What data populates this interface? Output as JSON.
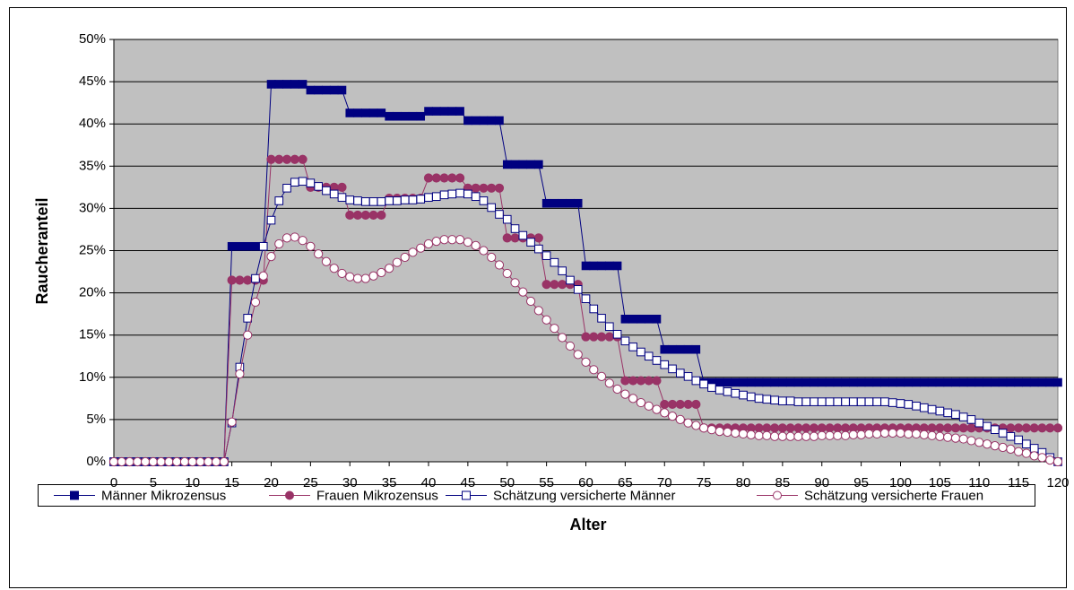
{
  "chart_data": {
    "type": "line",
    "x_label": "Alter",
    "y_label": "Raucheranteil",
    "x": [
      0,
      1,
      2,
      3,
      4,
      5,
      6,
      7,
      8,
      9,
      10,
      11,
      12,
      13,
      14,
      15,
      16,
      17,
      18,
      19,
      20,
      21,
      22,
      23,
      24,
      25,
      26,
      27,
      28,
      29,
      30,
      31,
      32,
      33,
      34,
      35,
      36,
      37,
      38,
      39,
      40,
      41,
      42,
      43,
      44,
      45,
      46,
      47,
      48,
      49,
      50,
      51,
      52,
      53,
      54,
      55,
      56,
      57,
      58,
      59,
      60,
      61,
      62,
      63,
      64,
      65,
      66,
      67,
      68,
      69,
      70,
      71,
      72,
      73,
      74,
      75,
      76,
      77,
      78,
      79,
      80,
      81,
      82,
      83,
      84,
      85,
      86,
      87,
      88,
      89,
      90,
      91,
      92,
      93,
      94,
      95,
      96,
      97,
      98,
      99,
      100,
      101,
      102,
      103,
      104,
      105,
      106,
      107,
      108,
      109,
      110,
      111,
      112,
      113,
      114,
      115,
      116,
      117,
      118,
      119,
      120
    ],
    "xlim": [
      0,
      120
    ],
    "xticks": [
      0,
      5,
      10,
      15,
      20,
      25,
      30,
      35,
      40,
      45,
      50,
      55,
      60,
      65,
      70,
      75,
      80,
      85,
      90,
      95,
      100,
      105,
      110,
      115,
      120
    ],
    "ylim": [
      0,
      50
    ],
    "yticks": [
      {
        "value": 0,
        "label": "0%"
      },
      {
        "value": 5,
        "label": "5%"
      },
      {
        "value": 10,
        "label": "10%"
      },
      {
        "value": 15,
        "label": "15%"
      },
      {
        "value": 20,
        "label": "20%"
      },
      {
        "value": 25,
        "label": "25%"
      },
      {
        "value": 30,
        "label": "30%"
      },
      {
        "value": 35,
        "label": "35%"
      },
      {
        "value": 40,
        "label": "40%"
      },
      {
        "value": 45,
        "label": "45%"
      },
      {
        "value": 50,
        "label": "50%"
      }
    ],
    "grid": true,
    "legend": "bottom",
    "series": [
      {
        "name": "Männer Mikrozensus",
        "color": "#000080",
        "marker": "square",
        "filled": true,
        "values": [
          0,
          0,
          0,
          0,
          0,
          0,
          0,
          0,
          0,
          0,
          0,
          0,
          0,
          0,
          0,
          25.5,
          25.5,
          25.5,
          25.5,
          25.5,
          44.7,
          44.7,
          44.7,
          44.7,
          44.7,
          44,
          44,
          44,
          44,
          44,
          41.3,
          41.3,
          41.3,
          41.3,
          41.3,
          40.9,
          40.9,
          40.9,
          40.9,
          40.9,
          41.5,
          41.5,
          41.5,
          41.5,
          41.5,
          40.4,
          40.4,
          40.4,
          40.4,
          40.4,
          35.2,
          35.2,
          35.2,
          35.2,
          35.2,
          30.6,
          30.6,
          30.6,
          30.6,
          30.6,
          23.2,
          23.2,
          23.2,
          23.2,
          23.2,
          16.9,
          16.9,
          16.9,
          16.9,
          16.9,
          13.3,
          13.3,
          13.3,
          13.3,
          13.3,
          9.4,
          9.4,
          9.4,
          9.4,
          9.4,
          9.4,
          9.4,
          9.4,
          9.4,
          9.4,
          9.4,
          9.4,
          9.4,
          9.4,
          9.4,
          9.4,
          9.4,
          9.4,
          9.4,
          9.4,
          9.4,
          9.4,
          9.4,
          9.4,
          9.4,
          9.4,
          9.4,
          9.4,
          9.4,
          9.4,
          9.4,
          9.4,
          9.4,
          9.4,
          9.4,
          9.4,
          9.4,
          9.4,
          9.4,
          9.4,
          9.4,
          9.4,
          9.4,
          9.4,
          9.4,
          9.4
        ]
      },
      {
        "name": "Frauen Mikrozensus",
        "color": "#993366",
        "marker": "circle",
        "filled": true,
        "values": [
          0,
          0,
          0,
          0,
          0,
          0,
          0,
          0,
          0,
          0,
          0,
          0,
          0,
          0,
          0,
          21.5,
          21.5,
          21.5,
          21.5,
          21.5,
          35.8,
          35.8,
          35.8,
          35.8,
          35.8,
          32.5,
          32.5,
          32.5,
          32.5,
          32.5,
          29.2,
          29.2,
          29.2,
          29.2,
          29.2,
          31.2,
          31.2,
          31.2,
          31.2,
          31.2,
          33.6,
          33.6,
          33.6,
          33.6,
          33.6,
          32.4,
          32.4,
          32.4,
          32.4,
          32.4,
          26.5,
          26.5,
          26.5,
          26.5,
          26.5,
          21,
          21,
          21,
          21,
          21,
          14.8,
          14.8,
          14.8,
          14.8,
          14.8,
          9.6,
          9.6,
          9.6,
          9.6,
          9.6,
          6.8,
          6.8,
          6.8,
          6.8,
          6.8,
          4,
          4,
          4,
          4,
          4,
          4,
          4,
          4,
          4,
          4,
          4,
          4,
          4,
          4,
          4,
          4,
          4,
          4,
          4,
          4,
          4,
          4,
          4,
          4,
          4,
          4,
          4,
          4,
          4,
          4,
          4,
          4,
          4,
          4,
          4,
          4,
          4,
          4,
          4,
          4,
          4,
          4,
          4,
          4,
          4,
          4
        ]
      },
      {
        "name": "Schätzung versicherte Männer",
        "color": "#000080",
        "marker": "square",
        "filled": false,
        "values": [
          0,
          0,
          0,
          0,
          0,
          0,
          0,
          0,
          0,
          0,
          0,
          0,
          0,
          0,
          0,
          4.6,
          11.2,
          17,
          21.7,
          25.5,
          28.6,
          30.9,
          32.4,
          33.1,
          33.2,
          33,
          32.6,
          32.1,
          31.7,
          31.3,
          31,
          30.9,
          30.8,
          30.8,
          30.8,
          30.9,
          30.9,
          31,
          31,
          31.1,
          31.3,
          31.4,
          31.6,
          31.7,
          31.8,
          31.7,
          31.4,
          30.9,
          30.1,
          29.3,
          28.7,
          27.6,
          26.8,
          26,
          25.2,
          24.4,
          23.6,
          22.6,
          21.5,
          20.4,
          19.3,
          18.1,
          17,
          16,
          15.1,
          14.3,
          13.6,
          13,
          12.5,
          12,
          11.5,
          11,
          10.5,
          10.1,
          9.6,
          9.2,
          8.8,
          8.5,
          8.3,
          8.1,
          7.9,
          7.7,
          7.5,
          7.4,
          7.3,
          7.2,
          7.2,
          7.1,
          7.1,
          7.1,
          7.1,
          7.1,
          7.1,
          7.1,
          7.1,
          7.1,
          7.1,
          7.1,
          7.1,
          7,
          6.9,
          6.8,
          6.6,
          6.4,
          6.2,
          6,
          5.8,
          5.6,
          5.3,
          5,
          4.6,
          4.2,
          3.8,
          3.4,
          3,
          2.6,
          2.1,
          1.6,
          1.1,
          0.5,
          0
        ]
      },
      {
        "name": "Schätzung versicherte Frauen",
        "color": "#993366",
        "marker": "circle",
        "filled": false,
        "values": [
          0,
          0,
          0,
          0,
          0,
          0,
          0,
          0,
          0,
          0,
          0,
          0,
          0,
          0,
          0,
          4.7,
          10.4,
          15,
          18.9,
          22,
          24.3,
          25.8,
          26.5,
          26.6,
          26.2,
          25.5,
          24.6,
          23.7,
          22.9,
          22.3,
          21.9,
          21.7,
          21.7,
          22,
          22.4,
          22.9,
          23.6,
          24.2,
          24.8,
          25.3,
          25.8,
          26.1,
          26.3,
          26.3,
          26.3,
          26,
          25.6,
          25,
          24.2,
          23.3,
          22.3,
          21.2,
          20.1,
          19,
          17.9,
          16.8,
          15.8,
          14.7,
          13.7,
          12.7,
          11.8,
          10.9,
          10.1,
          9.3,
          8.6,
          8,
          7.5,
          7,
          6.6,
          6.2,
          5.8,
          5.4,
          5,
          4.6,
          4.3,
          4,
          3.8,
          3.6,
          3.5,
          3.4,
          3.3,
          3.2,
          3.1,
          3.1,
          3,
          3,
          3,
          3,
          3,
          3,
          3.1,
          3.1,
          3.1,
          3.1,
          3.2,
          3.2,
          3.3,
          3.3,
          3.4,
          3.4,
          3.4,
          3.3,
          3.3,
          3.2,
          3.1,
          3,
          2.9,
          2.8,
          2.7,
          2.5,
          2.3,
          2.1,
          1.9,
          1.7,
          1.5,
          1.2,
          1,
          0.7,
          0.5,
          0.2,
          0
        ]
      }
    ]
  }
}
